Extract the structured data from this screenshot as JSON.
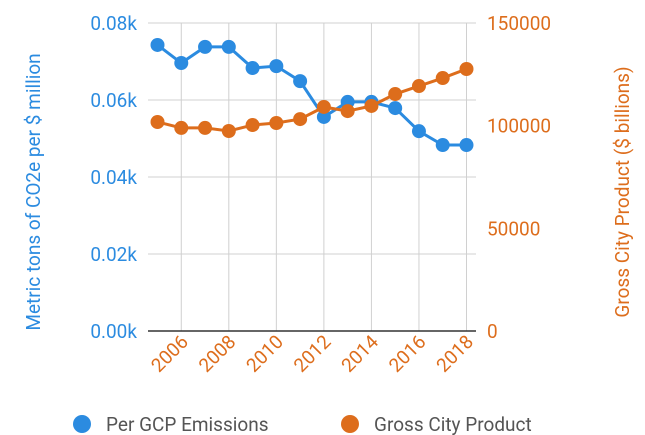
{
  "chart_data": {
    "type": "line",
    "x": [
      2005,
      2006,
      2007,
      2008,
      2009,
      2010,
      2011,
      2012,
      2013,
      2014,
      2015,
      2016,
      2017,
      2018
    ],
    "series": [
      {
        "name": "Per GCP Emissions",
        "color": "#2b8be0",
        "axis": "y",
        "values": [
          74.3,
          69.6,
          73.8,
          73.8,
          68.3,
          68.8,
          64.9,
          55.6,
          59.5,
          59.5,
          57.9,
          51.9,
          48.3,
          48.3
        ]
      },
      {
        "name": "Gross City Product",
        "color": "#dd6d1c",
        "axis": "y2",
        "values": [
          101800,
          98900,
          98900,
          97400,
          100300,
          101300,
          103200,
          109100,
          107100,
          109600,
          115400,
          119300,
          123200,
          127600
        ]
      }
    ],
    "ylabel": "Metric tons of CO2e per $ million",
    "y2label": "Gross City Product ($ billions)",
    "xlim": [
      2004.6,
      2018.4
    ],
    "xticks": [
      2006,
      2008,
      2010,
      2012,
      2014,
      2016,
      2018
    ],
    "ylim": [
      0,
      80
    ],
    "yticks": [
      {
        "value": 0,
        "label": "0.00k"
      },
      {
        "value": 20,
        "label": "0.02k"
      },
      {
        "value": 40,
        "label": "0.04k"
      },
      {
        "value": 60,
        "label": "0.06k"
      },
      {
        "value": 80,
        "label": "0.08k"
      }
    ],
    "y2lim": [
      0,
      150000
    ],
    "y2ticks": [
      0,
      50000,
      100000,
      150000
    ],
    "grid": true,
    "legend": "bottom"
  }
}
